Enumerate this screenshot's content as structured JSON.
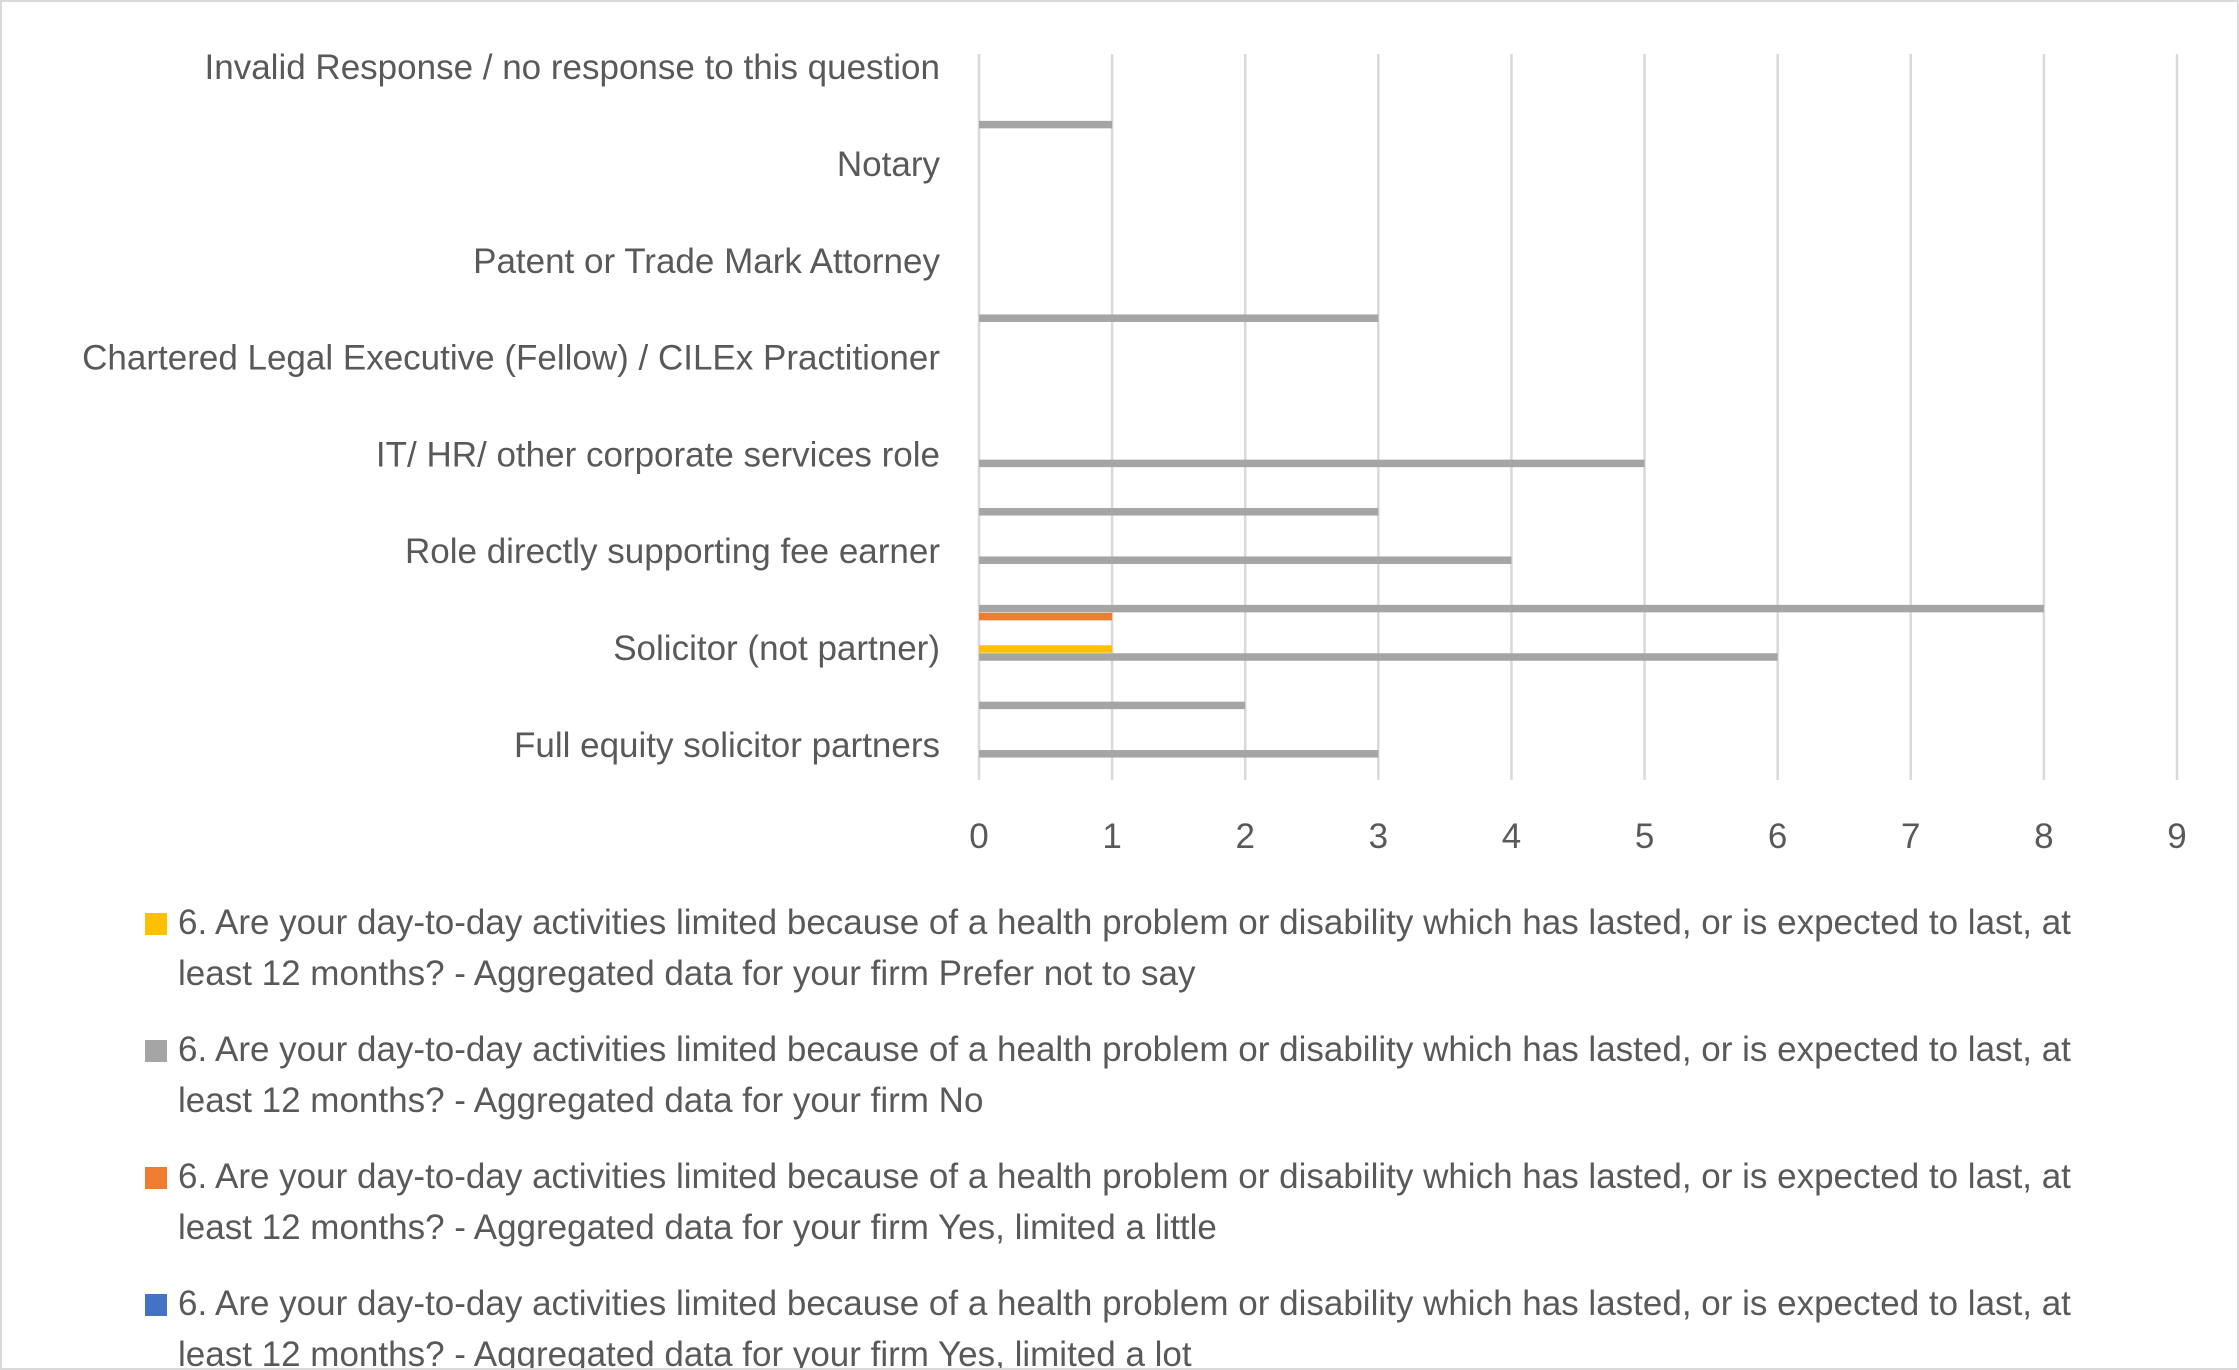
{
  "chart_data": {
    "type": "bar",
    "orientation": "horizontal",
    "categories": [
      "Full equity solicitor partners",
      "",
      "Solicitor (not partner)",
      "",
      "Role directly supporting fee earner",
      "",
      "IT/ HR/ other corporate services role",
      "",
      "Chartered Legal Executive (Fellow) / CILEx Practitioner",
      "",
      "Patent or Trade Mark Attorney",
      "",
      "Notary",
      "",
      "Invalid Response / no response to this question"
    ],
    "series": [
      {
        "name": "6. Are your day-to-day activities limited because of a health problem or disability which has lasted, or is expected to last, at least 12 months? - Aggregated data for your firm Prefer not to say",
        "color": "#FFC000",
        "values": [
          0,
          0,
          1,
          0,
          0,
          0,
          0,
          0,
          0,
          0,
          0,
          0,
          0,
          0,
          0
        ]
      },
      {
        "name": "6. Are your day-to-day activities limited because of a health problem or disability which has lasted, or is expected to last, at least 12 months? - Aggregated data for your firm No",
        "color": "#A5A5A5",
        "values": [
          3,
          2,
          6,
          8,
          4,
          3,
          5,
          0,
          0,
          3,
          0,
          0,
          0,
          1,
          0
        ]
      },
      {
        "name": "6. Are your day-to-day activities limited because of a health problem or disability which has lasted, or is expected to last, at least 12 months? - Aggregated data for your firm Yes, limited a little",
        "color": "#ED7D31",
        "values": [
          0,
          0,
          0,
          1,
          0,
          0,
          0,
          0,
          0,
          0,
          0,
          0,
          0,
          0,
          0
        ]
      },
      {
        "name": "6. Are your day-to-day activities limited because of a health problem or disability which has lasted, or is expected to last, at least 12 months? - Aggregated data for your firm Yes, limited a lot",
        "color": "#4472C4",
        "values": [
          0,
          0,
          0,
          0,
          0,
          0,
          0,
          0,
          0,
          0,
          0,
          0,
          0,
          0,
          0
        ]
      }
    ],
    "xlim": [
      0,
      9
    ],
    "xticks": [
      0,
      1,
      2,
      3,
      4,
      5,
      6,
      7,
      8,
      9
    ],
    "grid": true,
    "legend_position": "bottom",
    "title": "",
    "xlabel": "",
    "ylabel": ""
  }
}
